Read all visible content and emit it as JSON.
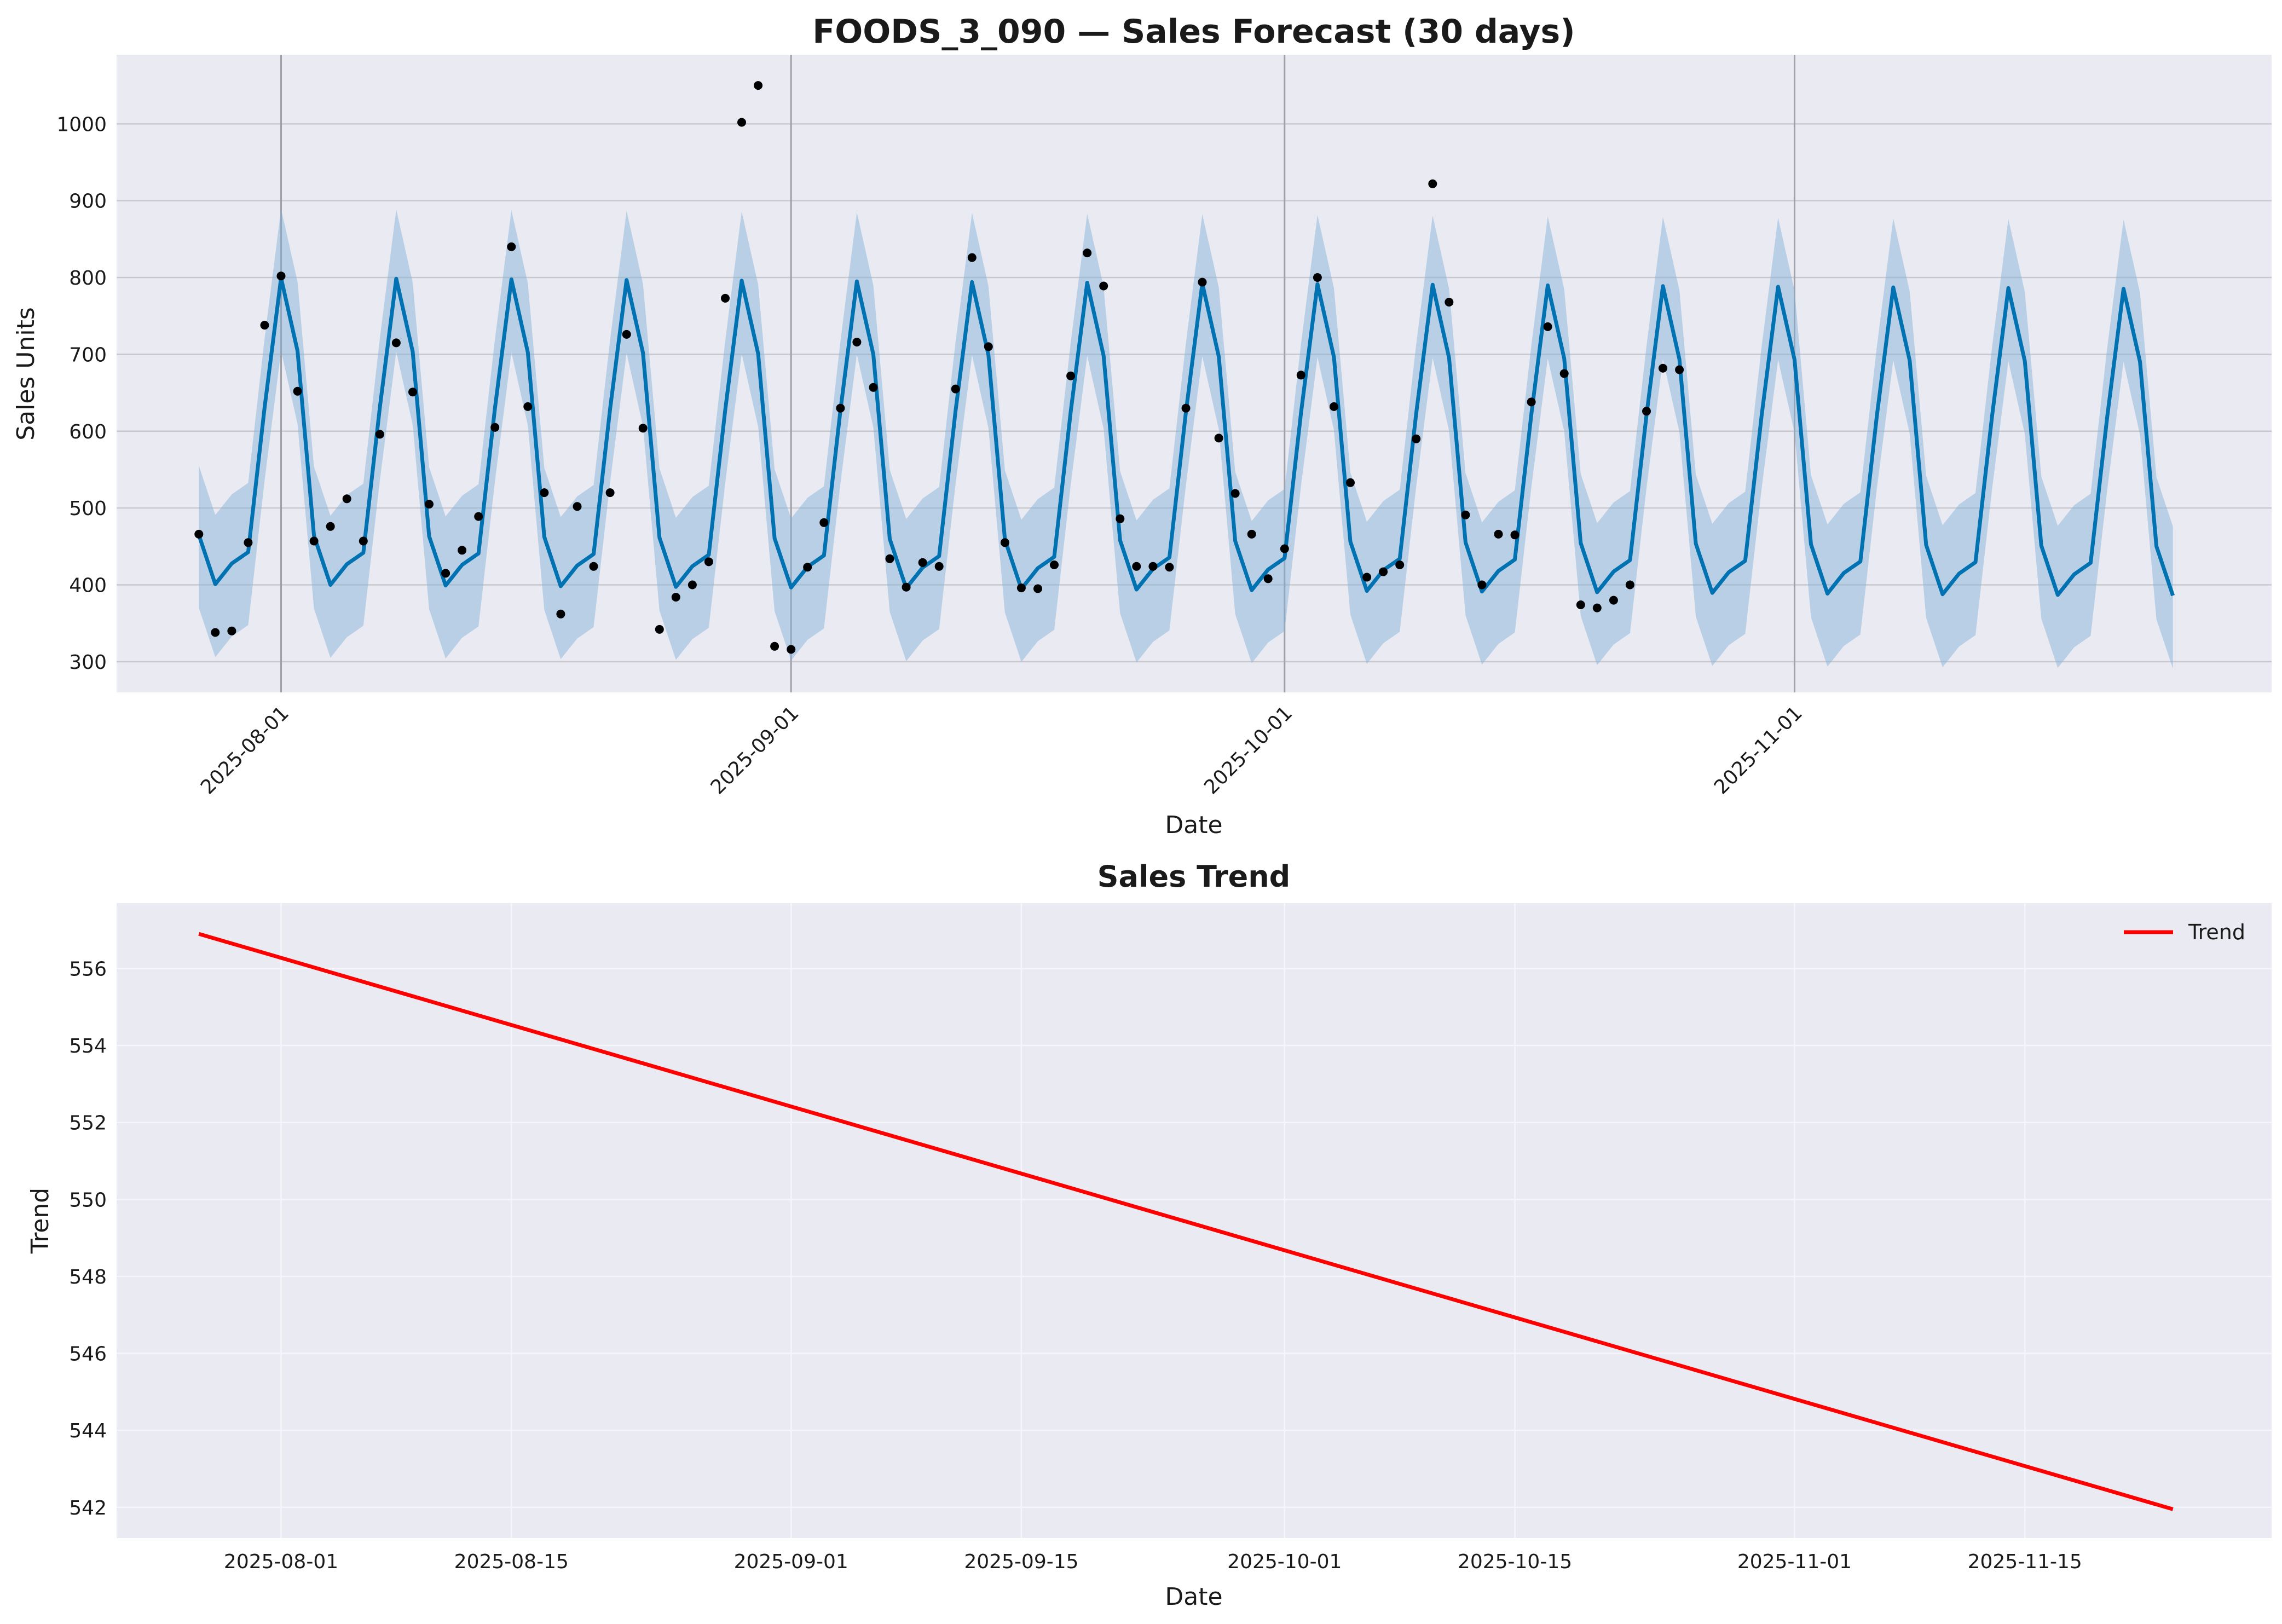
{
  "colors": {
    "axes_bg": "#eaeaf2",
    "grid": "#c8c8ce",
    "forecast_line": "#0072b2",
    "uncertainty_band": "#7fb0d6",
    "observed_points": "#000000",
    "changepoint_lines": "#a0a0a8",
    "trend_line": "#ff0000"
  },
  "chart_data": [
    {
      "type": "line",
      "title": "FOODS_3_090 — Sales Forecast (30 days)",
      "xlabel": "Date",
      "ylabel": "Sales Units",
      "x_start": "2025-07-27",
      "x_end": "2025-11-24",
      "xlim": [
        "2025-07-22",
        "2025-11-30"
      ],
      "ylim": [
        260,
        1090
      ],
      "x_tick_labels": [
        "2025-08-01",
        "2025-09-01",
        "2025-10-01",
        "2025-11-01"
      ],
      "y_ticks": [
        300,
        400,
        500,
        600,
        700,
        800,
        900,
        1000
      ],
      "grid": true,
      "vertical_markers": [
        "2025-08-01",
        "2025-09-01",
        "2025-10-01",
        "2025-11-01"
      ],
      "weekly_pattern": [
        465,
        401,
        428,
        443,
        632,
        800,
        705
      ],
      "weekly_lower_offset": 95,
      "weekly_upper_offset": 90,
      "forecast_trend_decline_total": 15,
      "observed_start": "2025-07-27",
      "observed": [
        466,
        338,
        340,
        455,
        738,
        802,
        652,
        457,
        476,
        512,
        457,
        596,
        715,
        651,
        505,
        415,
        445,
        489,
        605,
        840,
        632,
        520,
        362,
        502,
        424,
        520,
        726,
        604,
        342,
        384,
        400,
        430,
        773,
        1002,
        1050,
        320,
        316,
        423,
        481,
        630,
        716,
        657,
        434,
        397,
        429,
        424,
        655,
        826,
        710,
        455,
        396,
        395,
        426,
        672,
        832,
        789,
        486,
        424,
        424,
        423,
        630,
        794,
        591,
        519,
        466,
        408,
        447,
        673,
        800,
        632,
        533,
        410,
        417,
        426,
        590,
        922,
        768,
        491,
        400,
        466,
        465,
        638,
        736,
        675,
        374,
        370,
        380,
        400,
        626,
        682,
        680
      ],
      "series": [
        {
          "name": "Forecast"
        },
        {
          "name": "Uncertainty"
        },
        {
          "name": "Observed"
        }
      ]
    },
    {
      "type": "line",
      "title": "Sales Trend",
      "xlabel": "Date",
      "ylabel": "Trend",
      "xlim": [
        "2025-07-22",
        "2025-11-30"
      ],
      "ylim": [
        541.2,
        557.7
      ],
      "x_tick_labels": [
        "2025-08-01",
        "2025-08-15",
        "2025-09-01",
        "2025-09-15",
        "2025-10-01",
        "2025-10-15",
        "2025-11-01",
        "2025-11-15"
      ],
      "y_ticks": [
        542,
        544,
        546,
        548,
        550,
        552,
        554,
        556
      ],
      "grid": true,
      "legend_position": "top-right",
      "series": [
        {
          "name": "Trend",
          "x": [
            "2025-07-27",
            "2025-11-24"
          ],
          "values": [
            556.9,
            541.95
          ]
        }
      ]
    }
  ]
}
